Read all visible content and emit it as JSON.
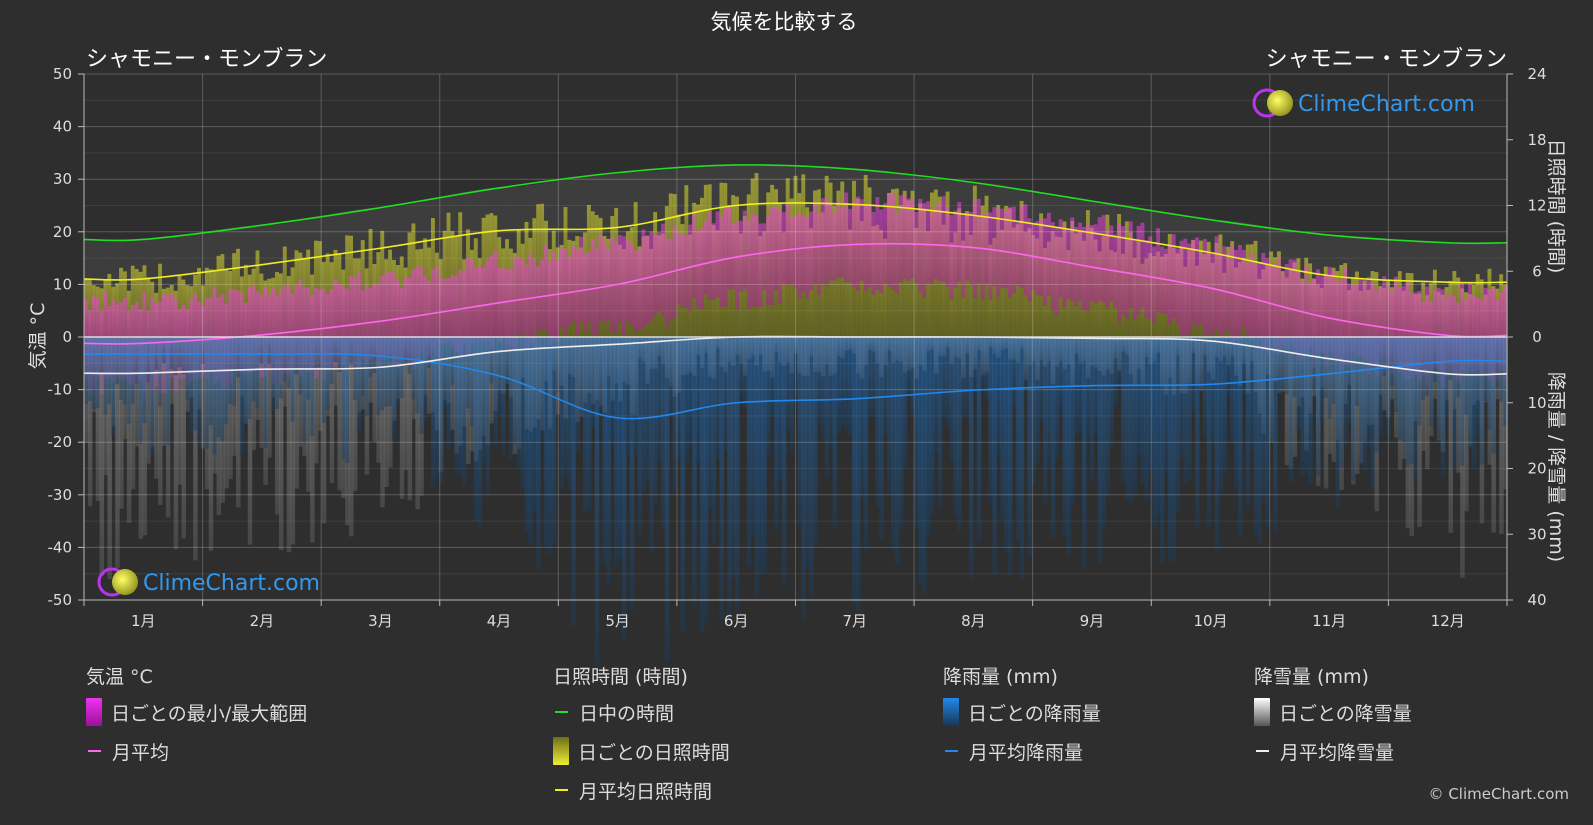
{
  "title": "気候を比較する",
  "location_left": "シャモニー・モンブラン",
  "location_right": "シャモニー・モンブラン",
  "watermark": "ClimeChart.com",
  "copyright": "© ClimeChart.com",
  "colors": {
    "background": "#2e2e2e",
    "daylight": "#22dd22",
    "sunshine_line": "#eeee22",
    "temp_line": "#ff66ee",
    "rain_line": "#2288ee",
    "snow_line": "#eeeeee",
    "temp_band": "#dd33cc",
    "sunshine_band": "#999922",
    "rain_band": "#1f5f99",
    "snow_band": "#8a8a8a",
    "logo_text": "#3399ee"
  },
  "legend": {
    "temp": {
      "head": "気温 °C",
      "range": "日ごとの最小/最大範囲",
      "avg": "月平均"
    },
    "sun": {
      "head": "日照時間 (時間)",
      "daylight": "日中の時間",
      "daily": "日ごとの日照時間",
      "avg": "月平均日照時間"
    },
    "rain": {
      "head": "降雨量 (mm)",
      "daily": "日ごとの降雨量",
      "avg": "月平均降雨量"
    },
    "snow": {
      "head": "降雪量 (mm)",
      "daily": "日ごとの降雪量",
      "avg": "月平均降雪量"
    }
  },
  "chart_data": {
    "type": "line",
    "categories": [
      "1月",
      "2月",
      "3月",
      "4月",
      "5月",
      "6月",
      "7月",
      "8月",
      "9月",
      "10月",
      "11月",
      "12月"
    ],
    "y_left": {
      "label": "気温 °C",
      "ticks": [
        "50",
        "40",
        "30",
        "20",
        "10",
        "0",
        "-10",
        "-20",
        "-30",
        "-40",
        "-50"
      ],
      "ylim": [
        -50,
        50
      ]
    },
    "y_right_top": {
      "label": "日照時間 (時間)",
      "ticks": [
        "24",
        "18",
        "12",
        "6",
        "0"
      ],
      "ylim": [
        0,
        24
      ]
    },
    "y_right_bottom": {
      "label": "降雨量 / 降雪量 (mm)",
      "ticks": [
        "10",
        "20",
        "30",
        "40"
      ],
      "ylim": [
        0,
        40
      ]
    },
    "grid": true,
    "series": [
      {
        "name": "日中の時間",
        "axis": "hours",
        "values": [
          8.9,
          10.2,
          11.8,
          13.6,
          15.0,
          15.7,
          15.3,
          14.1,
          12.4,
          10.7,
          9.3,
          8.6
        ]
      },
      {
        "name": "月平均日照時間",
        "axis": "hours",
        "values": [
          5.3,
          6.6,
          8.1,
          9.7,
          10.0,
          12.0,
          12.1,
          11.1,
          9.5,
          7.7,
          5.6,
          5.0
        ]
      },
      {
        "name": "月平均",
        "axis": "temp",
        "values": [
          -1.2,
          0.4,
          3.0,
          6.5,
          10.0,
          15.2,
          17.6,
          17.0,
          13.3,
          9.3,
          3.6,
          0.3
        ]
      },
      {
        "name": "月平均降雨量",
        "axis": "precip",
        "values": [
          2.6,
          2.6,
          2.9,
          5.9,
          12.3,
          10.0,
          9.4,
          8.1,
          7.4,
          7.2,
          5.6,
          3.7
        ]
      },
      {
        "name": "月平均降雪量",
        "axis": "precip",
        "values": [
          5.5,
          4.9,
          4.6,
          2.2,
          1.1,
          0.0,
          0.0,
          0.0,
          0.2,
          0.6,
          3.3,
          5.6
        ]
      }
    ]
  }
}
